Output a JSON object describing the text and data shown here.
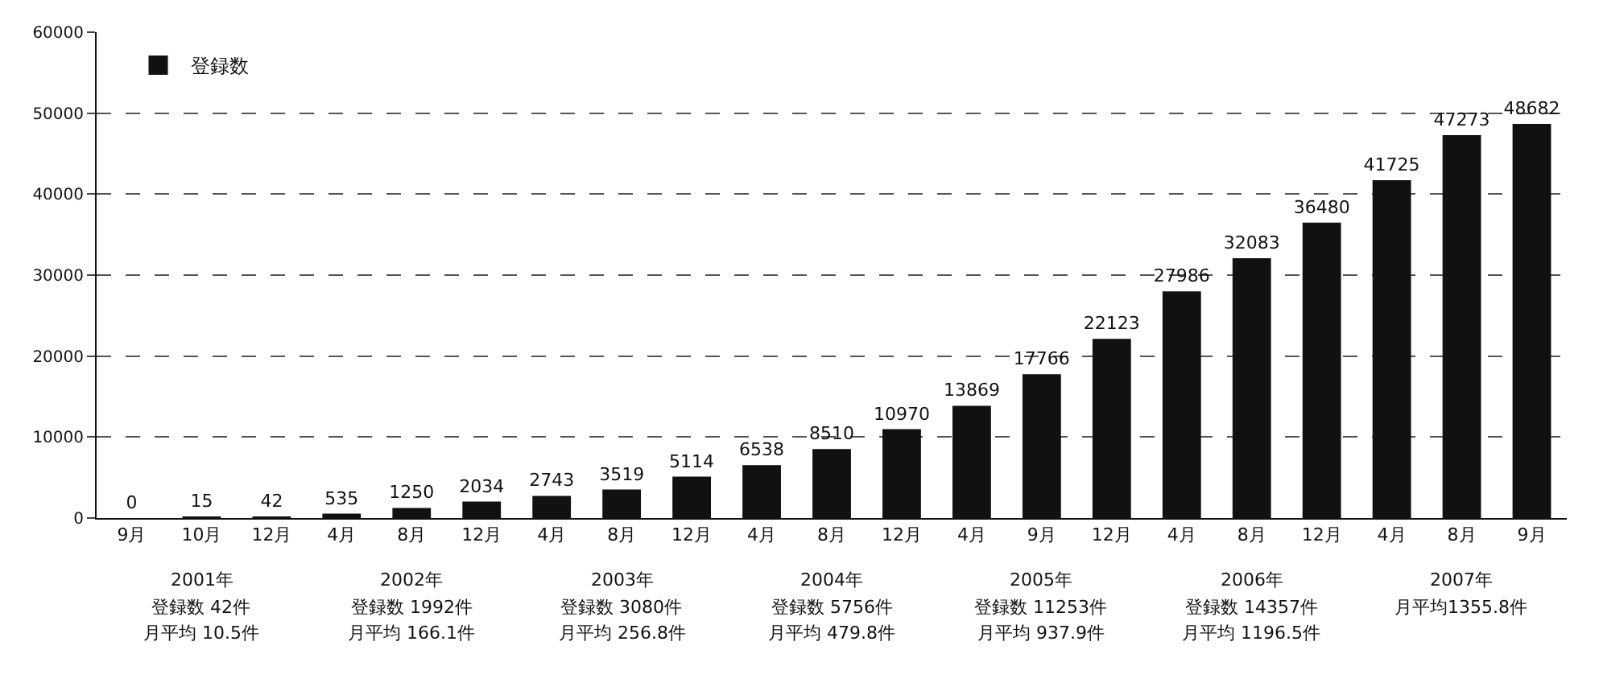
{
  "chart_data": {
    "type": "bar",
    "categories": [
      "9月",
      "10月",
      "12月",
      "4月",
      "8月",
      "12月",
      "4月",
      "8月",
      "12月",
      "4月",
      "8月",
      "12月",
      "4月",
      "9月",
      "12月",
      "4月",
      "8月",
      "12月",
      "4月",
      "8月",
      "9月"
    ],
    "series": [
      {
        "name": "登録数",
        "color": "#111111",
        "values": [
          0,
          15,
          42,
          535,
          1250,
          2034,
          2743,
          3519,
          5114,
          6538,
          8510,
          10970,
          13869,
          17766,
          22123,
          27986,
          32083,
          36480,
          41725,
          47273,
          48682
        ]
      }
    ],
    "ylim": [
      0,
      60000
    ],
    "yticks": [
      0,
      10000,
      20000,
      30000,
      40000,
      50000,
      60000
    ],
    "grid": "y",
    "legend": "top left",
    "data_labels": true,
    "annotations": [
      "2001年",
      "登録数 42件",
      "月平均 10.5件",
      "2002年",
      "登録数 1992件",
      "月平均 166.1件",
      "2003年",
      "登録数 3080件",
      "月平均 256.8件",
      "2004年",
      "登録数 5756件",
      "月平均 479.8件",
      "2005年",
      "登録数 11253件",
      "月平均 937.9件",
      "2006年",
      "登録数 14357件",
      "月平均 1196.5件",
      "2007年",
      "月平均1355.8件"
    ]
  }
}
